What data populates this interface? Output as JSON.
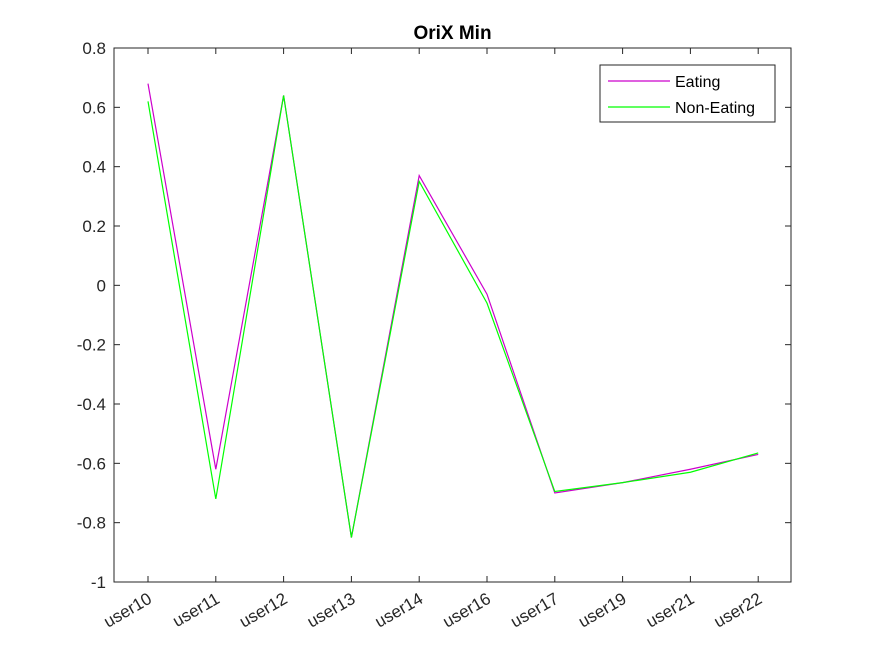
{
  "chart_data": {
    "type": "line",
    "title": "OriX Min",
    "xlabel": "",
    "ylabel": "",
    "categories": [
      "user10",
      "user11",
      "user12",
      "user13",
      "user14",
      "user16",
      "user17",
      "user19",
      "user21",
      "user22"
    ],
    "ylim": [
      -1,
      0.8
    ],
    "yticks": [
      0.8,
      0.6,
      0.4,
      0.2,
      0,
      -0.2,
      -0.4,
      -0.6,
      -0.8,
      -1
    ],
    "ytick_labels": [
      "0.8",
      "0.6",
      "0.4",
      "0.2",
      "0",
      "-0.2",
      "-0.4",
      "-0.6",
      "-0.8",
      "-1"
    ],
    "grid": false,
    "legend_position": "top-right",
    "series": [
      {
        "name": "Eating",
        "color": "#CC00CC",
        "values": [
          0.68,
          -0.62,
          0.64,
          -0.85,
          0.37,
          -0.03,
          -0.7,
          -0.665,
          -0.62,
          -0.57
        ]
      },
      {
        "name": "Non-Eating",
        "color": "#00FF00",
        "values": [
          0.62,
          -0.72,
          0.64,
          -0.85,
          0.35,
          -0.06,
          -0.695,
          -0.665,
          -0.63,
          -0.565
        ]
      }
    ]
  }
}
